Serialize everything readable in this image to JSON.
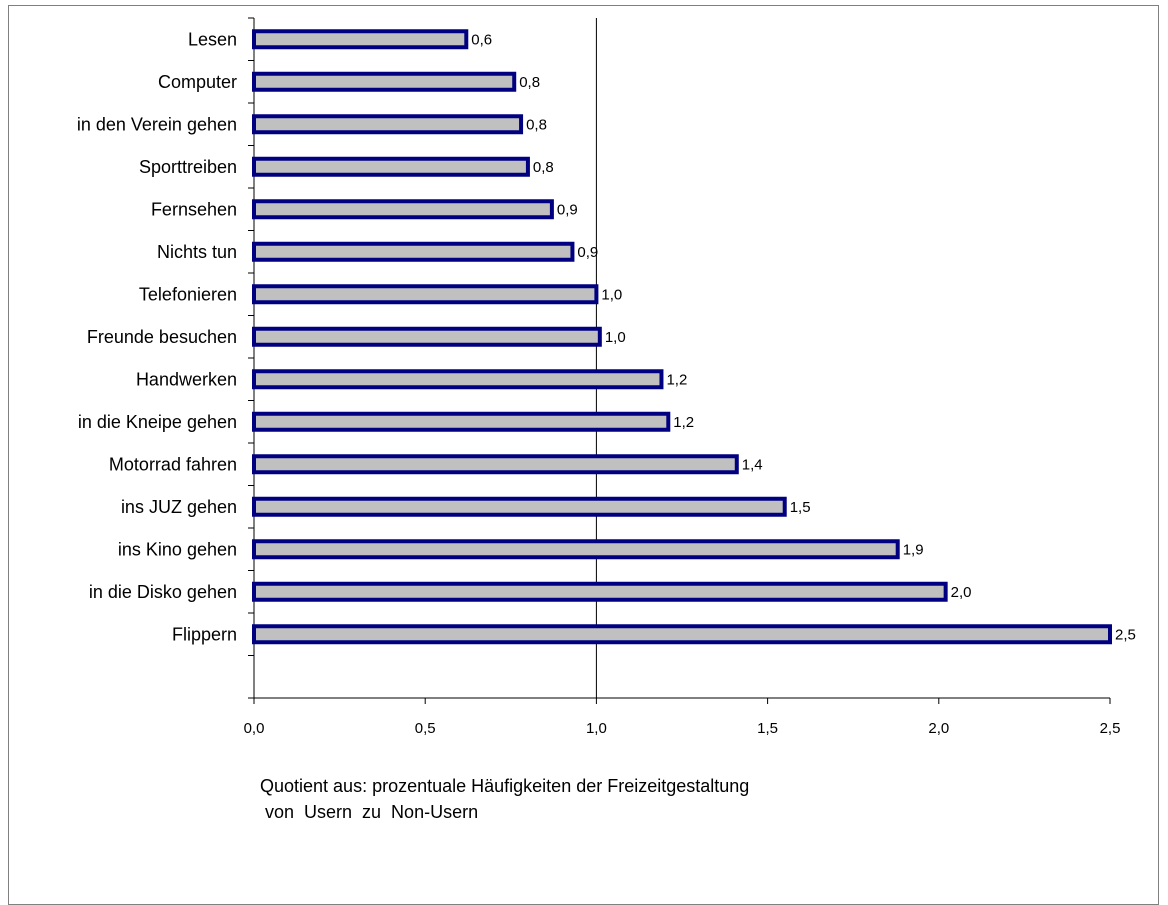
{
  "chart_data": {
    "type": "bar",
    "orientation": "horizontal",
    "categories": [
      "Lesen",
      "Computer",
      "in den Verein gehen",
      "Sporttreiben",
      "Fernsehen",
      "Nichts tun",
      "Telefonieren",
      "Freunde besuchen",
      "Handwerken",
      "in die Kneipe gehen",
      "Motorrad fahren",
      "ins JUZ gehen",
      "ins Kino gehen",
      "in die Disko gehen",
      "Flippern"
    ],
    "values": [
      0.62,
      0.76,
      0.78,
      0.8,
      0.87,
      0.93,
      1.0,
      1.01,
      1.19,
      1.21,
      1.41,
      1.55,
      1.88,
      2.02,
      2.5
    ],
    "value_labels": [
      "0,6",
      "0,8",
      "0,8",
      "0,8",
      "0,9",
      "0,9",
      "1,0",
      "1,0",
      "1,2",
      "1,2",
      "1,4",
      "1,5",
      "1,9",
      "2,0",
      "2,5"
    ],
    "xticks": [
      0.0,
      0.5,
      1.0,
      1.5,
      2.0,
      2.5
    ],
    "xtick_labels": [
      "0,0",
      "0,5",
      "1,0",
      "1,5",
      "2,0",
      "2,5"
    ],
    "xlim": [
      0,
      2.5
    ],
    "reference_line": 1.0,
    "grid": false,
    "bar_fill": "#c0c0c0",
    "bar_outline": "#000080",
    "xlabel_lines": [
      "Quotient aus: prozentuale Häufigkeiten der Freizeitgestaltung",
      " von  Usern  zu  Non-Usern"
    ]
  }
}
